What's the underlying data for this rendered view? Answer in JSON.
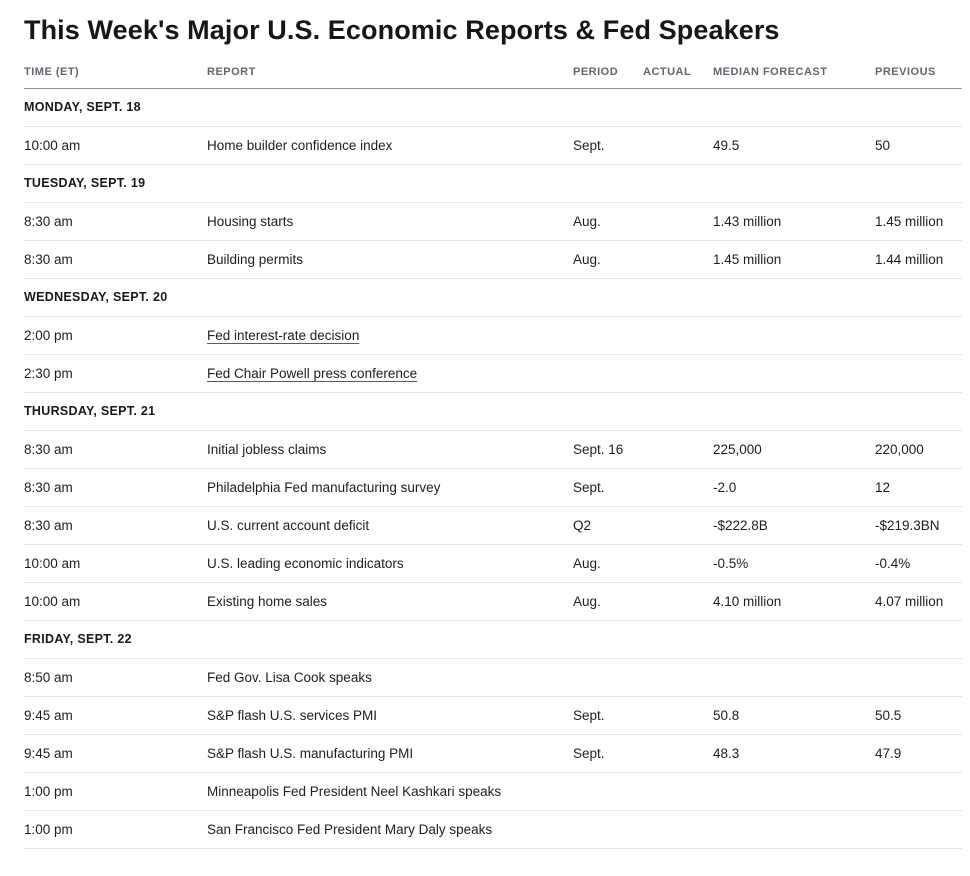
{
  "page_title": "This Week's Major U.S. Economic Reports & Fed Speakers",
  "table": {
    "columns": [
      {
        "key": "time",
        "label": "TIME (ET)"
      },
      {
        "key": "report",
        "label": "REPORT"
      },
      {
        "key": "period",
        "label": "PERIOD"
      },
      {
        "key": "actual",
        "label": "ACTUAL"
      },
      {
        "key": "median_forecast",
        "label": "MEDIAN FORECAST"
      },
      {
        "key": "previous",
        "label": "PREVIOUS"
      }
    ],
    "sections": [
      {
        "day": "MONDAY, SEPT. 18",
        "rows": [
          {
            "time": "10:00 am",
            "report": "Home builder confidence index",
            "link": false,
            "period": "Sept.",
            "actual": "",
            "median_forecast": "49.5",
            "previous": "50"
          }
        ]
      },
      {
        "day": "TUESDAY, SEPT. 19",
        "rows": [
          {
            "time": "8:30 am",
            "report": "Housing starts",
            "link": false,
            "period": "Aug.",
            "actual": "",
            "median_forecast": "1.43 million",
            "previous": "1.45 million"
          },
          {
            "time": "8:30 am",
            "report": "Building permits",
            "link": false,
            "period": "Aug.",
            "actual": "",
            "median_forecast": "1.45 million",
            "previous": "1.44 million"
          }
        ]
      },
      {
        "day": "WEDNESDAY, SEPT. 20",
        "rows": [
          {
            "time": "2:00 pm",
            "report": "Fed interest-rate decision",
            "link": true,
            "period": "",
            "actual": "",
            "median_forecast": "",
            "previous": ""
          },
          {
            "time": "2:30 pm",
            "report": "Fed Chair Powell press conference",
            "link": true,
            "period": "",
            "actual": "",
            "median_forecast": "",
            "previous": ""
          }
        ]
      },
      {
        "day": "THURSDAY, SEPT. 21",
        "rows": [
          {
            "time": "8:30 am",
            "report": "Initial jobless claims",
            "link": false,
            "period": "Sept. 16",
            "actual": "",
            "median_forecast": "225,000",
            "previous": "220,000"
          },
          {
            "time": "8:30 am",
            "report": "Philadelphia Fed manufacturing survey",
            "link": false,
            "period": "Sept.",
            "actual": "",
            "median_forecast": "-2.0",
            "previous": "12"
          },
          {
            "time": "8:30 am",
            "report": "U.S. current account deficit",
            "link": false,
            "period": "Q2",
            "actual": "",
            "median_forecast": "-$222.8B",
            "previous": "-$219.3BN"
          },
          {
            "time": "10:00 am",
            "report": "U.S. leading economic indicators",
            "link": false,
            "period": "Aug.",
            "actual": "",
            "median_forecast": "-0.5%",
            "previous": "-0.4%"
          },
          {
            "time": "10:00 am",
            "report": "Existing home sales",
            "link": false,
            "period": "Aug.",
            "actual": "",
            "median_forecast": "4.10 million",
            "previous": "4.07 million"
          }
        ]
      },
      {
        "day": "FRIDAY, SEPT. 22",
        "rows": [
          {
            "time": "8:50 am",
            "report": "Fed Gov. Lisa Cook speaks",
            "link": false,
            "period": "",
            "actual": "",
            "median_forecast": "",
            "previous": ""
          },
          {
            "time": "9:45 am",
            "report": "S&P flash U.S. services PMI",
            "link": false,
            "period": "Sept.",
            "actual": "",
            "median_forecast": "50.8",
            "previous": "50.5"
          },
          {
            "time": "9:45 am",
            "report": "S&P flash U.S. manufacturing PMI",
            "link": false,
            "period": "Sept.",
            "actual": "",
            "median_forecast": "48.3",
            "previous": "47.9"
          },
          {
            "time": "1:00 pm",
            "report": "Minneapolis Fed President Neel Kashkari speaks",
            "link": false,
            "period": "",
            "actual": "",
            "median_forecast": "",
            "previous": ""
          },
          {
            "time": "1:00 pm",
            "report": "San Francisco Fed President Mary Daly speaks",
            "link": false,
            "period": "",
            "actual": "",
            "median_forecast": "",
            "previous": ""
          }
        ]
      }
    ]
  }
}
